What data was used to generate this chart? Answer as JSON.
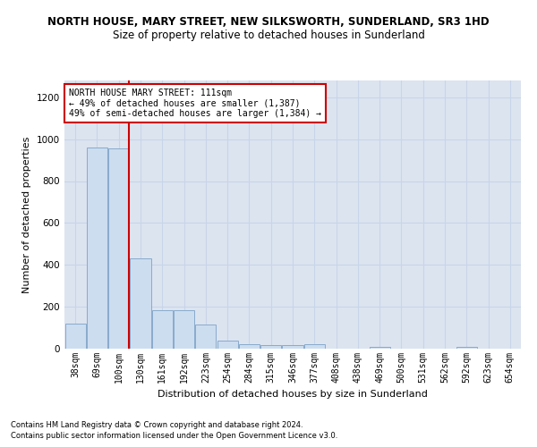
{
  "title": "NORTH HOUSE, MARY STREET, NEW SILKSWORTH, SUNDERLAND, SR3 1HD",
  "subtitle": "Size of property relative to detached houses in Sunderland",
  "xlabel": "Distribution of detached houses by size in Sunderland",
  "ylabel": "Number of detached properties",
  "categories": [
    "38sqm",
    "69sqm",
    "100sqm",
    "130sqm",
    "161sqm",
    "192sqm",
    "223sqm",
    "254sqm",
    "284sqm",
    "315sqm",
    "346sqm",
    "377sqm",
    "408sqm",
    "438sqm",
    "469sqm",
    "500sqm",
    "531sqm",
    "562sqm",
    "592sqm",
    "623sqm",
    "654sqm"
  ],
  "values": [
    120,
    960,
    955,
    430,
    185,
    185,
    115,
    40,
    20,
    15,
    15,
    20,
    0,
    0,
    10,
    0,
    0,
    0,
    10,
    0,
    0
  ],
  "bar_color": "#ccddf0",
  "bar_edge_color": "#88aacc",
  "red_line_x": 2.48,
  "annotation_text": "NORTH HOUSE MARY STREET: 111sqm\n← 49% of detached houses are smaller (1,387)\n49% of semi-detached houses are larger (1,384) →",
  "annotation_box_color": "#ffffff",
  "annotation_box_edge": "#cc0000",
  "red_line_color": "#cc0000",
  "ylim": [
    0,
    1280
  ],
  "yticks": [
    0,
    200,
    400,
    600,
    800,
    1000,
    1200
  ],
  "grid_color": "#c8d4e8",
  "bg_color": "#dce4f0",
  "footer1": "Contains HM Land Registry data © Crown copyright and database right 2024.",
  "footer2": "Contains public sector information licensed under the Open Government Licence v3.0.",
  "title_fontsize": 8.5,
  "subtitle_fontsize": 8.5,
  "xlabel_fontsize": 8,
  "ylabel_fontsize": 8
}
